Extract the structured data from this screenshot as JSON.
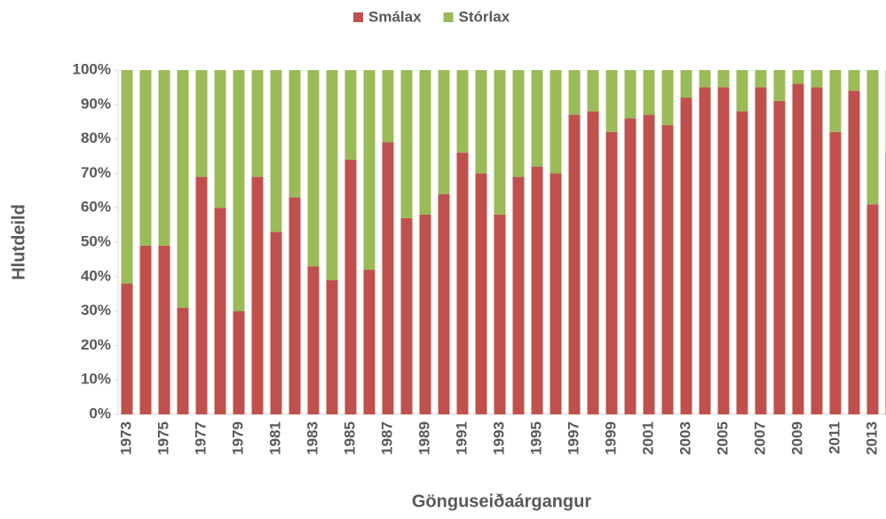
{
  "chart_data": {
    "type": "stacked_bar",
    "x_label": "Gönguseiðaárgangur",
    "y_label": "Hlutdeild",
    "categories": [
      "1973",
      null,
      "1975",
      null,
      "1977",
      null,
      "1979",
      null,
      "1981",
      null,
      "1983",
      null,
      "1985",
      null,
      "1987",
      null,
      "1989",
      null,
      "1991",
      null,
      "1993",
      null,
      "1995",
      null,
      "1997",
      null,
      "1999",
      null,
      "2001",
      null,
      "2003",
      null,
      "2005",
      null,
      "2007",
      null,
      "2009",
      null,
      "2011",
      null,
      "2013",
      null
    ],
    "series": [
      {
        "name": "Smálax",
        "color": "#c0504d",
        "values": [
          38,
          49,
          49,
          31,
          69,
          60,
          30,
          69,
          53,
          63,
          43,
          39,
          74,
          42,
          79,
          57,
          58,
          64,
          76,
          70,
          58,
          69,
          72,
          70,
          87,
          88,
          82,
          86,
          87,
          84,
          92,
          95,
          95,
          88,
          95,
          91,
          96,
          95,
          82,
          94,
          61,
          76
        ]
      },
      {
        "name": "Stórlax",
        "color": "#9bbb59",
        "values": [
          62,
          51,
          51,
          69,
          31,
          40,
          70,
          31,
          47,
          37,
          57,
          61,
          26,
          58,
          21,
          43,
          42,
          36,
          24,
          30,
          42,
          31,
          28,
          30,
          13,
          12,
          18,
          14,
          13,
          16,
          8,
          5,
          5,
          12,
          5,
          9,
          4,
          5,
          18,
          6,
          39,
          24
        ]
      }
    ],
    "ylim": [
      0,
      100
    ],
    "yticks": [
      {
        "value": 0,
        "label": "0%"
      },
      {
        "value": 10,
        "label": "10%"
      },
      {
        "value": 20,
        "label": "20%"
      },
      {
        "value": 30,
        "label": "30%"
      },
      {
        "value": 40,
        "label": "40%"
      },
      {
        "value": 50,
        "label": "50%"
      },
      {
        "value": 60,
        "label": "60%"
      },
      {
        "value": 70,
        "label": "70%"
      },
      {
        "value": 80,
        "label": "80%"
      },
      {
        "value": 90,
        "label": "90%"
      },
      {
        "value": 100,
        "label": "100%"
      }
    ],
    "legend": "top"
  }
}
